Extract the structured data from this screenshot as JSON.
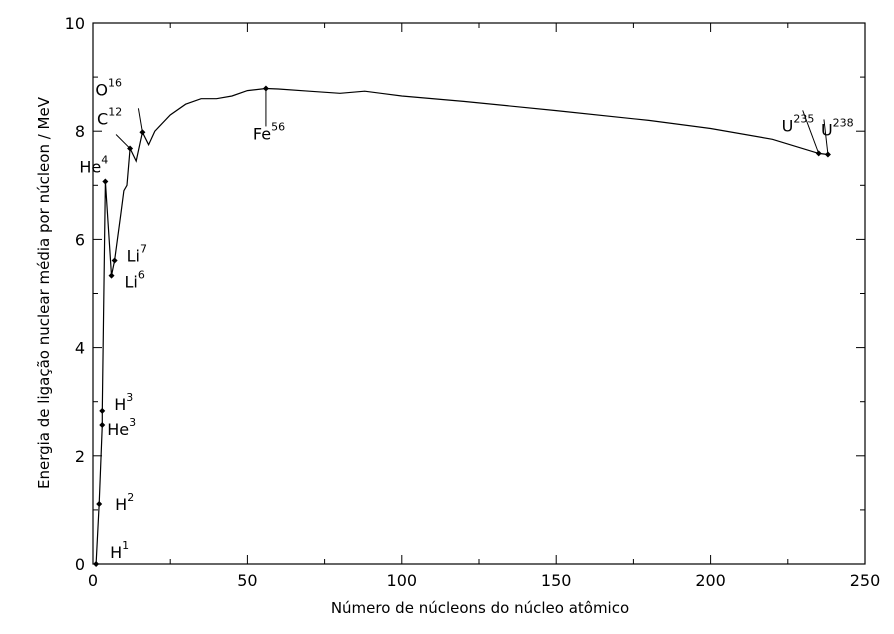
{
  "chart_data": {
    "type": "line",
    "x_label": "Número de núcleons do núcleo atômico",
    "y_label": "Energia de ligação nuclear média por núcleon / MeV",
    "xlim": [
      0,
      250
    ],
    "ylim": [
      0,
      10
    ],
    "xticks": [
      0,
      50,
      100,
      150,
      200,
      250
    ],
    "yticks": [
      0,
      2,
      4,
      6,
      8,
      10
    ],
    "xminorticks": [
      25,
      75,
      125,
      175,
      225
    ],
    "yminorticks": [
      1,
      3,
      5,
      7,
      9
    ],
    "series": [
      {
        "color": "#000000",
        "x": [
          1,
          2,
          3,
          3,
          4,
          6,
          7,
          9,
          10,
          11,
          12,
          14,
          16,
          18,
          20,
          25,
          30,
          35,
          40,
          45,
          50,
          56,
          60,
          70,
          80,
          88,
          100,
          120,
          150,
          180,
          200,
          220,
          235,
          238
        ],
        "values": [
          0,
          1.11,
          2.57,
          2.83,
          7.07,
          5.33,
          5.61,
          6.46,
          6.9,
          7.0,
          7.68,
          7.45,
          7.98,
          7.75,
          8.0,
          8.3,
          8.5,
          8.6,
          8.6,
          8.65,
          8.75,
          8.79,
          8.78,
          8.74,
          8.7,
          8.74,
          8.65,
          8.55,
          8.38,
          8.2,
          8.05,
          7.85,
          7.59,
          7.57
        ]
      }
    ],
    "nuclides": {
      "color": "#000000",
      "labels": [
        "H",
        "H",
        "H",
        "He",
        "He",
        "Li",
        "Li",
        "C",
        "O",
        "Fe",
        "U",
        "U"
      ],
      "x": [
        1,
        2,
        3,
        3,
        4,
        6,
        7,
        12,
        16,
        56,
        235,
        238
      ],
      "values": [
        0,
        1.11,
        2.83,
        2.57,
        7.07,
        5.33,
        5.61,
        7.68,
        7.98,
        8.79,
        7.59,
        7.57
      ]
    }
  }
}
